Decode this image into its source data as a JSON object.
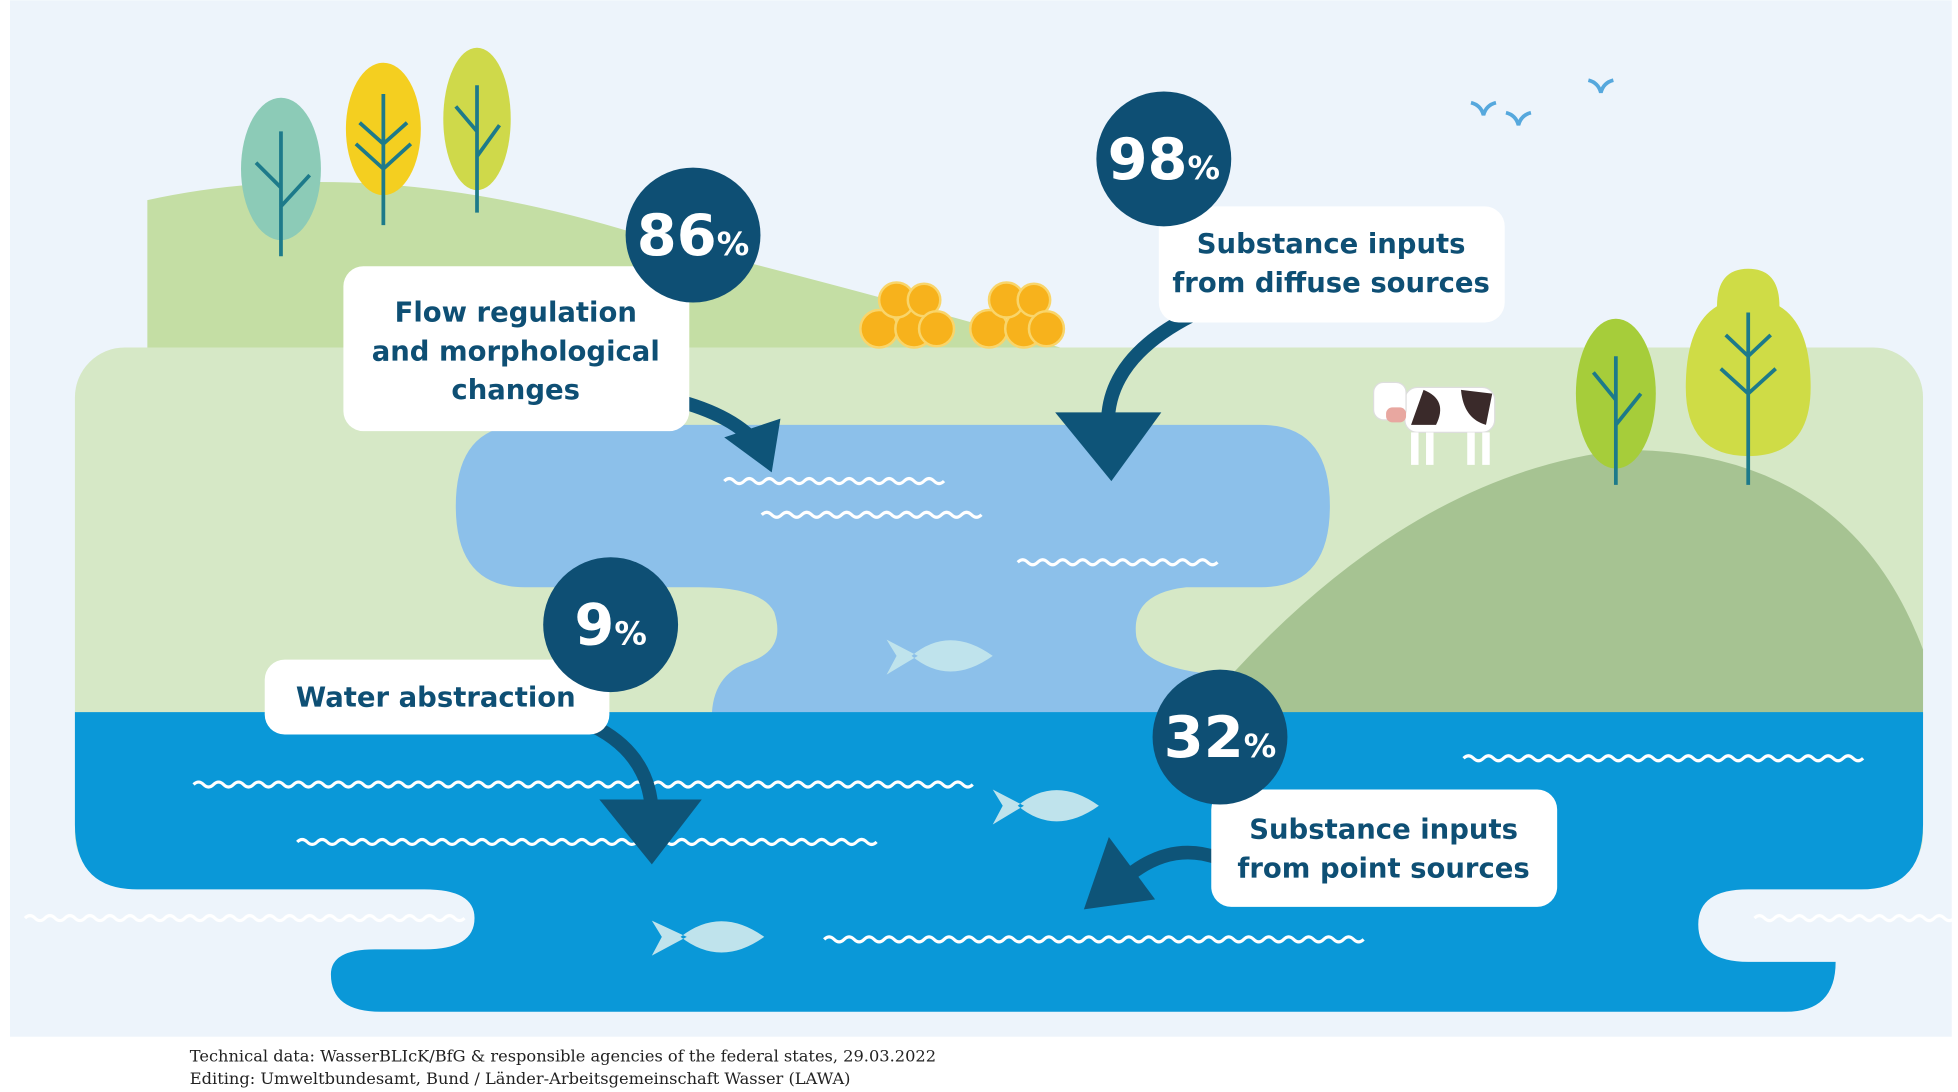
{
  "items": [
    {
      "value": 86,
      "unit": "%",
      "label": [
        "Flow regulation",
        "and morphological",
        "changes"
      ]
    },
    {
      "value": 98,
      "unit": "%",
      "label": [
        "Substance inputs",
        "from diffuse sources"
      ]
    },
    {
      "value": 9,
      "unit": "%",
      "label": [
        "Water abstraction"
      ]
    },
    {
      "value": 32,
      "unit": "%",
      "label": [
        "Substance inputs",
        "from point sources"
      ]
    }
  ],
  "footer": [
    "Technical data: WasserBLIcK/BfG & responsible agencies of the federal states, 29.03.2022",
    "Editing: Umweltbundesamt, Bund / Länder-Arbeitsgemeinschaft Wasser (LAWA)"
  ]
}
